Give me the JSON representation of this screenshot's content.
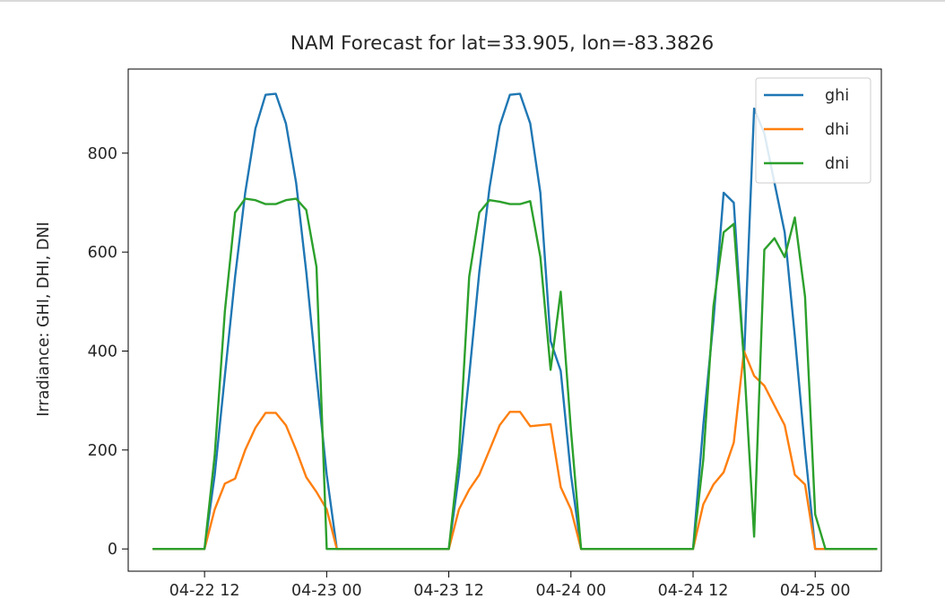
{
  "chart_data": {
    "type": "line",
    "title": "NAM Forecast for lat=33.905, lon=-83.3826",
    "xlabel": "",
    "ylabel": "Irradiance: GHI, DHI, DNI",
    "x_unit": "hours",
    "xlim": [
      -7.5,
      66.5
    ],
    "ylim": [
      -45,
      970
    ],
    "yticks": [
      0,
      200,
      400,
      600,
      800
    ],
    "xtick_positions": [
      0,
      12,
      24,
      36,
      48,
      60
    ],
    "xtick_labels": [
      "04-22 12",
      "04-23 00",
      "04-23 12",
      "04-24 00",
      "04-24 12",
      "04-25 00"
    ],
    "legend_position": "upper right",
    "grid": false,
    "series": [
      {
        "name": "ghi",
        "color": "#1f77b4",
        "points": [
          [
            -5,
            0
          ],
          [
            0,
            0
          ],
          [
            1,
            150
          ],
          [
            2,
            350
          ],
          [
            3,
            550
          ],
          [
            4,
            720
          ],
          [
            5,
            850
          ],
          [
            6,
            918
          ],
          [
            7,
            920
          ],
          [
            8,
            860
          ],
          [
            9,
            740
          ],
          [
            10,
            560
          ],
          [
            11,
            350
          ],
          [
            12,
            150
          ],
          [
            13,
            0
          ],
          [
            24,
            0
          ],
          [
            25,
            150
          ],
          [
            26,
            350
          ],
          [
            27,
            560
          ],
          [
            28,
            730
          ],
          [
            29,
            855
          ],
          [
            30,
            918
          ],
          [
            31,
            920
          ],
          [
            32,
            860
          ],
          [
            33,
            720
          ],
          [
            34,
            420
          ],
          [
            35,
            360
          ],
          [
            36,
            150
          ],
          [
            37,
            0
          ],
          [
            48,
            0
          ],
          [
            49,
            250
          ],
          [
            50,
            460
          ],
          [
            51,
            720
          ],
          [
            52,
            700
          ],
          [
            53,
            380
          ],
          [
            54,
            890
          ],
          [
            55,
            840
          ],
          [
            56,
            740
          ],
          [
            57,
            640
          ],
          [
            58,
            430
          ],
          [
            59,
            200
          ],
          [
            60,
            0
          ],
          [
            66,
            0
          ]
        ]
      },
      {
        "name": "dhi",
        "color": "#ff7f0e",
        "points": [
          [
            -5,
            0
          ],
          [
            0,
            0
          ],
          [
            1,
            80
          ],
          [
            2,
            132
          ],
          [
            3,
            142
          ],
          [
            4,
            200
          ],
          [
            5,
            245
          ],
          [
            6,
            275
          ],
          [
            7,
            275
          ],
          [
            8,
            250
          ],
          [
            9,
            200
          ],
          [
            10,
            145
          ],
          [
            11,
            115
          ],
          [
            12,
            80
          ],
          [
            13,
            0
          ],
          [
            24,
            0
          ],
          [
            25,
            80
          ],
          [
            26,
            120
          ],
          [
            27,
            150
          ],
          [
            28,
            200
          ],
          [
            29,
            250
          ],
          [
            30,
            277
          ],
          [
            31,
            277
          ],
          [
            32,
            248
          ],
          [
            33,
            250
          ],
          [
            34,
            252
          ],
          [
            35,
            125
          ],
          [
            36,
            80
          ],
          [
            37,
            0
          ],
          [
            48,
            0
          ],
          [
            49,
            90
          ],
          [
            50,
            130
          ],
          [
            51,
            155
          ],
          [
            52,
            215
          ],
          [
            53,
            400
          ],
          [
            54,
            350
          ],
          [
            55,
            330
          ],
          [
            56,
            290
          ],
          [
            57,
            250
          ],
          [
            58,
            150
          ],
          [
            59,
            130
          ],
          [
            60,
            0
          ],
          [
            66,
            0
          ]
        ]
      },
      {
        "name": "dni",
        "color": "#2ca02c",
        "points": [
          [
            -5,
            0
          ],
          [
            0,
            0
          ],
          [
            1,
            190
          ],
          [
            2,
            480
          ],
          [
            3,
            680
          ],
          [
            4,
            708
          ],
          [
            5,
            705
          ],
          [
            6,
            697
          ],
          [
            7,
            697
          ],
          [
            8,
            705
          ],
          [
            9,
            708
          ],
          [
            10,
            685
          ],
          [
            11,
            570
          ],
          [
            12,
            0
          ],
          [
            13,
            0
          ],
          [
            24,
            0
          ],
          [
            25,
            190
          ],
          [
            26,
            550
          ],
          [
            27,
            680
          ],
          [
            28,
            705
          ],
          [
            29,
            702
          ],
          [
            30,
            697
          ],
          [
            31,
            697
          ],
          [
            32,
            703
          ],
          [
            33,
            590
          ],
          [
            34,
            362
          ],
          [
            35,
            520
          ],
          [
            36,
            240
          ],
          [
            37,
            0
          ],
          [
            48,
            0
          ],
          [
            49,
            180
          ],
          [
            50,
            490
          ],
          [
            51,
            640
          ],
          [
            52,
            657
          ],
          [
            53,
            380
          ],
          [
            54,
            25
          ],
          [
            55,
            605
          ],
          [
            56,
            628
          ],
          [
            57,
            590
          ],
          [
            58,
            670
          ],
          [
            59,
            510
          ],
          [
            60,
            70
          ],
          [
            61,
            0
          ],
          [
            66,
            0
          ]
        ]
      }
    ]
  }
}
